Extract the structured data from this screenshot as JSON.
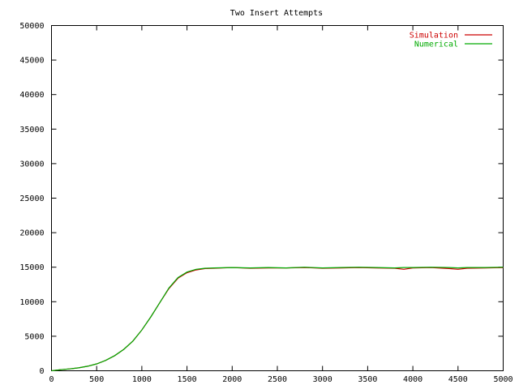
{
  "chart_data": {
    "type": "line",
    "title": "Two Insert Attempts",
    "xlabel": "",
    "ylabel": "",
    "xlim": [
      0,
      5000
    ],
    "ylim": [
      0,
      50000
    ],
    "x_ticks": [
      0,
      500,
      1000,
      1500,
      2000,
      2500,
      3000,
      3500,
      4000,
      4500,
      5000
    ],
    "y_ticks": [
      0,
      5000,
      10000,
      15000,
      20000,
      25000,
      30000,
      35000,
      40000,
      45000,
      50000
    ],
    "grid": false,
    "legend_position": "top-right",
    "series": [
      {
        "name": "Simulation",
        "color": "#cc0000",
        "x": [
          0,
          100,
          200,
          300,
          400,
          500,
          600,
          700,
          800,
          900,
          1000,
          1100,
          1200,
          1300,
          1400,
          1500,
          1600,
          1700,
          1800,
          2000,
          2200,
          2400,
          2600,
          2800,
          3000,
          3200,
          3400,
          3600,
          3800,
          3900,
          4000,
          4200,
          4400,
          4500,
          4600,
          4800,
          5000
        ],
        "y": [
          0,
          150,
          270,
          420,
          660,
          1000,
          1500,
          2200,
          3100,
          4300,
          5900,
          7800,
          9900,
          11900,
          13400,
          14200,
          14600,
          14800,
          14850,
          14950,
          14850,
          14900,
          14900,
          14950,
          14850,
          14900,
          14950,
          14900,
          14850,
          14700,
          14900,
          14950,
          14800,
          14700,
          14850,
          14900,
          14950
        ]
      },
      {
        "name": "Numerical",
        "color": "#00aa00",
        "x": [
          0,
          100,
          200,
          300,
          400,
          500,
          600,
          700,
          800,
          900,
          1000,
          1100,
          1200,
          1300,
          1400,
          1500,
          1600,
          1700,
          1800,
          2000,
          2200,
          2400,
          2600,
          2800,
          3000,
          3200,
          3400,
          3600,
          3800,
          3900,
          4000,
          4200,
          4400,
          4500,
          4600,
          4800,
          5000
        ],
        "y": [
          0,
          150,
          270,
          420,
          660,
          1000,
          1500,
          2200,
          3100,
          4300,
          5900,
          7800,
          9900,
          12000,
          13500,
          14300,
          14700,
          14850,
          14900,
          14950,
          14900,
          14950,
          14900,
          15000,
          14900,
          14950,
          15000,
          14950,
          14900,
          14950,
          14950,
          15000,
          14950,
          14900,
          14950,
          14950,
          15000
        ]
      }
    ]
  }
}
